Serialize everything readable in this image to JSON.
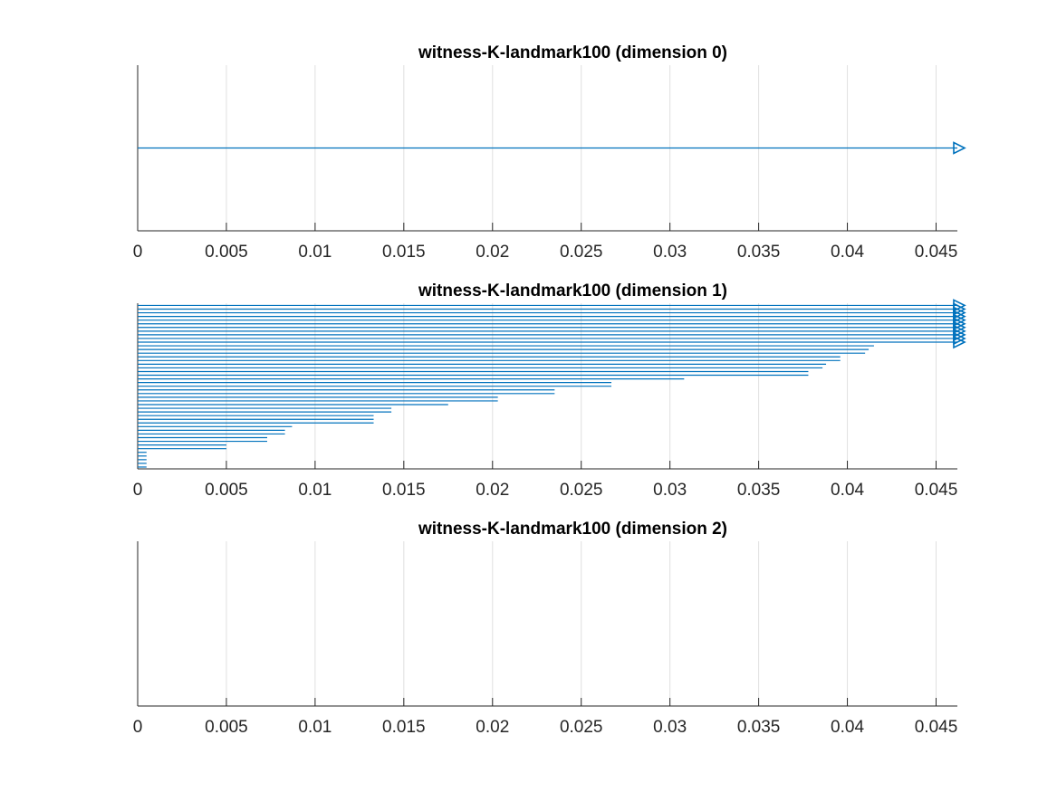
{
  "chart_data": [
    {
      "type": "barcode",
      "title": "witness-K-landmark100 (dimension 0)",
      "xlim": [
        0,
        0.0462
      ],
      "xticks": [
        "0",
        "0.005",
        "0.01",
        "0.015",
        "0.02",
        "0.025",
        "0.03",
        "0.035",
        "0.04",
        "0.045"
      ],
      "grid": true,
      "color": "#0072BD",
      "bars": [
        {
          "birth": 0,
          "death": 0.0462,
          "infinite": true
        }
      ]
    },
    {
      "type": "barcode",
      "title": "witness-K-landmark100 (dimension 1)",
      "xlim": [
        0,
        0.0462
      ],
      "xticks": [
        "0",
        "0.005",
        "0.01",
        "0.015",
        "0.02",
        "0.025",
        "0.03",
        "0.035",
        "0.04",
        "0.045"
      ],
      "grid": true,
      "color": "#0072BD",
      "bars": [
        {
          "birth": 0,
          "death": 0.0462,
          "infinite": true
        },
        {
          "birth": 0,
          "death": 0.0462,
          "infinite": true
        },
        {
          "birth": 0,
          "death": 0.0462,
          "infinite": true
        },
        {
          "birth": 0,
          "death": 0.0462,
          "infinite": true
        },
        {
          "birth": 0,
          "death": 0.0462,
          "infinite": true
        },
        {
          "birth": 0,
          "death": 0.0462,
          "infinite": true
        },
        {
          "birth": 0,
          "death": 0.0462,
          "infinite": true
        },
        {
          "birth": 0,
          "death": 0.0462,
          "infinite": true
        },
        {
          "birth": 0,
          "death": 0.0462,
          "infinite": true
        },
        {
          "birth": 0,
          "death": 0.0462,
          "infinite": true
        },
        {
          "birth": 0,
          "death": 0.0462,
          "infinite": true
        },
        {
          "birth": 0,
          "death": 0.0415
        },
        {
          "birth": 0,
          "death": 0.0412
        },
        {
          "birth": 0,
          "death": 0.041
        },
        {
          "birth": 0,
          "death": 0.0396
        },
        {
          "birth": 0,
          "death": 0.0396
        },
        {
          "birth": 0,
          "death": 0.0388
        },
        {
          "birth": 0,
          "death": 0.0386
        },
        {
          "birth": 0,
          "death": 0.0378
        },
        {
          "birth": 0,
          "death": 0.0378
        },
        {
          "birth": 0,
          "death": 0.0308
        },
        {
          "birth": 0,
          "death": 0.0267
        },
        {
          "birth": 0,
          "death": 0.0267
        },
        {
          "birth": 0,
          "death": 0.0235
        },
        {
          "birth": 0,
          "death": 0.0235
        },
        {
          "birth": 0,
          "death": 0.0203
        },
        {
          "birth": 0,
          "death": 0.0203
        },
        {
          "birth": 0,
          "death": 0.0175
        },
        {
          "birth": 0,
          "death": 0.0143
        },
        {
          "birth": 0,
          "death": 0.0143
        },
        {
          "birth": 0,
          "death": 0.0133
        },
        {
          "birth": 0,
          "death": 0.0133
        },
        {
          "birth": 0,
          "death": 0.0133
        },
        {
          "birth": 0,
          "death": 0.0087
        },
        {
          "birth": 0,
          "death": 0.0083
        },
        {
          "birth": 0,
          "death": 0.0083
        },
        {
          "birth": 0,
          "death": 0.0073
        },
        {
          "birth": 0,
          "death": 0.0073
        },
        {
          "birth": 0,
          "death": 0.005
        },
        {
          "birth": 0,
          "death": 0.005
        },
        {
          "birth": 0,
          "death": 0.0005
        },
        {
          "birth": 0,
          "death": 0.0005
        },
        {
          "birth": 0,
          "death": 0.0005
        },
        {
          "birth": 0,
          "death": 0.0005
        },
        {
          "birth": 0,
          "death": 0.0005
        }
      ]
    },
    {
      "type": "barcode",
      "title": "witness-K-landmark100 (dimension 2)",
      "xlim": [
        0,
        0.0462
      ],
      "xticks": [
        "0",
        "0.005",
        "0.01",
        "0.015",
        "0.02",
        "0.025",
        "0.03",
        "0.035",
        "0.04",
        "0.045"
      ],
      "grid": true,
      "color": "#0072BD",
      "bars": []
    }
  ]
}
